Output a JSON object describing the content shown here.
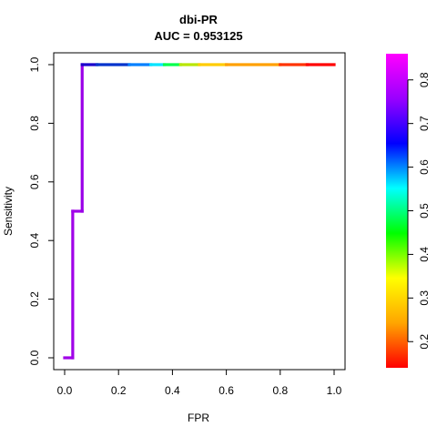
{
  "chart_data": {
    "type": "line",
    "title": "dbi-PR",
    "subtitle": "AUC = 0.953125",
    "xlabel": "FPR",
    "ylabel": "Sensitivity",
    "xlim": [
      0,
      1
    ],
    "ylim": [
      0,
      1
    ],
    "xticks": [
      "0.0",
      "0.2",
      "0.4",
      "0.6",
      "0.8",
      "1.0"
    ],
    "yticks": [
      "0.0",
      "0.2",
      "0.4",
      "0.6",
      "0.8",
      "1.0"
    ],
    "grid": false,
    "series": [
      {
        "points": [
          {
            "x": 0.0,
            "y": 0.0,
            "color": "#8b00cc"
          },
          {
            "x": 0.03,
            "y": 0.0,
            "color": "#a000e8"
          },
          {
            "x": 0.03,
            "y": 0.5,
            "color": "#a000e8"
          },
          {
            "x": 0.065,
            "y": 0.5,
            "color": "#a000e8"
          },
          {
            "x": 0.065,
            "y": 1.0,
            "color": "#9a00e8"
          },
          {
            "x": 0.12,
            "y": 1.0,
            "color": "#1a00cc"
          },
          {
            "x": 0.24,
            "y": 1.0,
            "color": "#0033cc"
          },
          {
            "x": 0.32,
            "y": 1.0,
            "color": "#0080ff"
          },
          {
            "x": 0.37,
            "y": 1.0,
            "color": "#00e5ff"
          },
          {
            "x": 0.43,
            "y": 1.0,
            "color": "#00ff4c"
          },
          {
            "x": 0.5,
            "y": 1.0,
            "color": "#b8e600"
          },
          {
            "x": 0.6,
            "y": 1.0,
            "color": "#ffcc00"
          },
          {
            "x": 0.8,
            "y": 1.0,
            "color": "#ffa000"
          },
          {
            "x": 0.9,
            "y": 1.0,
            "color": "#ff3300"
          },
          {
            "x": 1.0,
            "y": 1.0,
            "color": "#ff0000"
          }
        ]
      }
    ],
    "colorbar": {
      "range": [
        0.14,
        0.86
      ],
      "ticks": [
        "0.2",
        "0.3",
        "0.4",
        "0.5",
        "0.6",
        "0.7",
        "0.8"
      ],
      "tick_values": [
        0.2,
        0.3,
        0.4,
        0.5,
        0.6,
        0.7,
        0.8
      ],
      "color_stops": [
        "#ff0000",
        "#ffa500",
        "#ffff00",
        "#00ff00",
        "#00ffff",
        "#0000ff",
        "#9900ff",
        "#ff00ff"
      ]
    }
  }
}
